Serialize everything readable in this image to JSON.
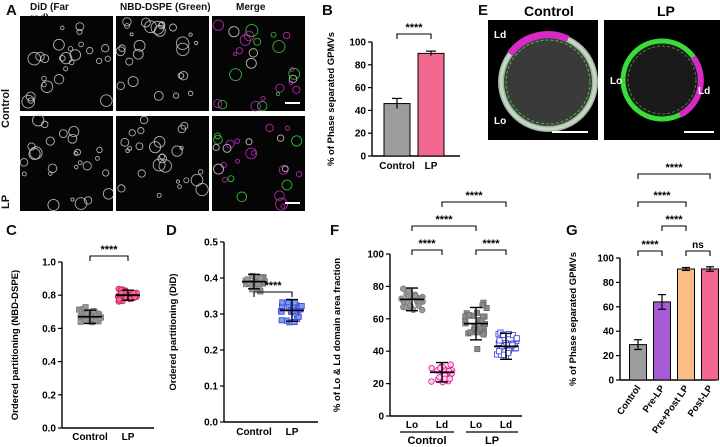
{
  "panels": {
    "A": {
      "letter": "A",
      "columns": [
        "DiD (Far red)",
        "NBD-DSPE (Green)",
        "Merge"
      ],
      "rows": [
        "Control",
        "LP"
      ]
    },
    "E": {
      "letter": "E",
      "titles": [
        "Control",
        "LP"
      ],
      "control_labels": [
        "Ld",
        "Lo"
      ],
      "lp_labels": [
        "Lo",
        "Ld"
      ]
    }
  },
  "colors": {
    "gray_bar": "#9c9c9c",
    "pink_bar": "#f2688f",
    "purple_bar": "#a85ad4",
    "orange_bar": "#fbbf86",
    "magenta": "#e0189b",
    "blue": "#3a3ad8",
    "green": "#3adb3a"
  },
  "chart_data": [
    {
      "panel": "B",
      "type": "bar",
      "categories": [
        "Control",
        "LP"
      ],
      "values": [
        46,
        90
      ],
      "errors": [
        4.5,
        2
      ],
      "ylabel": "% of Phase separated GPMVs",
      "ylim": [
        0,
        100
      ],
      "yticks": [
        "0",
        "20",
        "40",
        "60",
        "80",
        "100"
      ],
      "significance": [
        {
          "pair": [
            "Control",
            "LP"
          ],
          "label": "****"
        }
      ]
    },
    {
      "panel": "C",
      "type": "scatter",
      "categories": [
        "Control",
        "LP"
      ],
      "means": [
        0.67,
        0.8
      ],
      "sd": [
        0.04,
        0.03
      ],
      "ylabel": "Ordered partitioning (NBD-DSPE)",
      "ylim": [
        0,
        1.0
      ],
      "yticks": [
        "0.0",
        "0.2",
        "0.4",
        "0.6",
        "0.8",
        "1.0"
      ],
      "significance": [
        {
          "pair": [
            "Control",
            "LP"
          ],
          "label": "****"
        }
      ]
    },
    {
      "panel": "D",
      "type": "scatter",
      "categories": [
        "Control",
        "LP"
      ],
      "means": [
        0.39,
        0.31
      ],
      "sd": [
        0.02,
        0.03
      ],
      "ylabel": "Ordered partitioning (DiD)",
      "ylim": [
        0,
        0.5
      ],
      "yticks": [
        "0.0",
        "0.1",
        "0.2",
        "0.3",
        "0.4",
        "0.5"
      ],
      "significance": [
        {
          "pair": [
            "Control",
            "LP"
          ],
          "label": "****"
        }
      ]
    },
    {
      "panel": "F",
      "type": "scatter",
      "categories": [
        "Lo",
        "Ld",
        "Lo",
        "Ld"
      ],
      "groups": [
        "Control",
        "LP"
      ],
      "means": [
        72,
        27,
        57,
        43
      ],
      "sd": [
        7,
        6,
        10,
        8
      ],
      "ylabel": "% of Lo & Ld domain area fraction",
      "ylim": [
        0,
        100
      ],
      "yticks": [
        "0",
        "20",
        "40",
        "60",
        "80",
        "100"
      ],
      "significance": [
        {
          "pair": [
            "Control Lo",
            "Control Ld"
          ],
          "label": "****"
        },
        {
          "pair": [
            "LP Lo",
            "LP Ld"
          ],
          "label": "****"
        },
        {
          "pair": [
            "Control Lo",
            "LP Lo"
          ],
          "label": "****"
        },
        {
          "pair": [
            "Control Ld",
            "LP Ld"
          ],
          "label": "****"
        }
      ]
    },
    {
      "panel": "G",
      "type": "bar",
      "categories": [
        "Control",
        "Pre-LP",
        "Pre+Post LP",
        "Post-LP"
      ],
      "values": [
        29,
        64,
        91,
        91
      ],
      "errors": [
        4,
        6,
        1.2,
        1.8
      ],
      "ylabel": "% of Phase separated GPMVs",
      "ylim": [
        0,
        100
      ],
      "yticks": [
        "0",
        "20",
        "40",
        "60",
        "80",
        "100"
      ],
      "significance": [
        {
          "pair": [
            "Control",
            "Pre-LP"
          ],
          "label": "****"
        },
        {
          "pair": [
            "Pre+Post LP",
            "Post-LP"
          ],
          "label": "ns"
        },
        {
          "pair": [
            "Pre-LP",
            "Pre+Post LP"
          ],
          "label": "****"
        },
        {
          "pair": [
            "Control",
            "Pre+Post LP"
          ],
          "label": "****"
        },
        {
          "pair": [
            "Control",
            "Post-LP"
          ],
          "label": "****"
        }
      ]
    }
  ]
}
